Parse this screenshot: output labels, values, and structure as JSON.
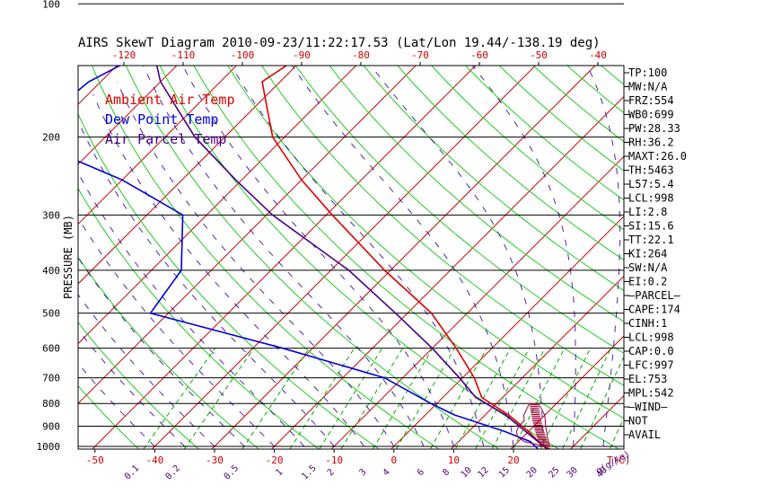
{
  "chart_data": {
    "type": "line",
    "title": "AIRS SkewT Diagram 2010-09-23/11:22:17.53 (Lat/Lon 19.44/-138.19 deg)",
    "ylabel": "PRESSURE (MB)",
    "pressure_ticks": [
      100,
      200,
      300,
      400,
      500,
      600,
      700,
      800,
      900,
      1000
    ],
    "top_temp_ticks": [
      -120,
      -110,
      -100,
      -90,
      -80,
      -70,
      -60,
      -50,
      -40
    ],
    "bottom_temp_ticks": [
      -50,
      -40,
      -30,
      -20,
      -10,
      0,
      10,
      20
    ],
    "bottom_temp_unit": "T(C)",
    "mixing_ratio_labels": [
      "0.1",
      "0.2",
      "0.5",
      "1",
      "1.5",
      "2",
      "3",
      "4",
      "6",
      "8",
      "10",
      "12",
      "15",
      "20",
      "25",
      "30",
      "40"
    ],
    "mixing_ratio_unit": "q(g/kg)",
    "legend": [
      {
        "name": "Ambient Air Temp",
        "color": "#dd0000"
      },
      {
        "name": "Dew Point Temp",
        "color": "#0000dd"
      },
      {
        "name": "Air Parcel Temp",
        "color": "#440088"
      }
    ],
    "series": [
      {
        "name": "Ambient Air Temp",
        "color": "#dd0000",
        "points": [
          [
            100,
            -78.5
          ],
          [
            110,
            -78
          ],
          [
            150,
            -83
          ],
          [
            200,
            -72
          ],
          [
            250,
            -60
          ],
          [
            300,
            -49
          ],
          [
            400,
            -31
          ],
          [
            500,
            -16
          ],
          [
            600,
            -6
          ],
          [
            700,
            2
          ],
          [
            775,
            6.5
          ],
          [
            850,
            14
          ],
          [
            925,
            20
          ],
          [
            1000,
            25
          ],
          [
            1013,
            26.5
          ]
        ]
      },
      {
        "name": "Dew Point Temp",
        "color": "#0000dd",
        "points": [
          [
            100,
            -100
          ],
          [
            150,
            -112
          ],
          [
            200,
            -114
          ],
          [
            250,
            -90
          ],
          [
            300,
            -74
          ],
          [
            400,
            -65
          ],
          [
            500,
            -63
          ],
          [
            600,
            -35
          ],
          [
            700,
            -13
          ],
          [
            800,
            -1
          ],
          [
            850,
            5
          ],
          [
            925,
            16
          ],
          [
            975,
            22
          ],
          [
            1013,
            24.5
          ]
        ]
      },
      {
        "name": "Air Parcel Temp",
        "color": "#440088",
        "points": [
          [
            100,
            -116
          ],
          [
            150,
            -100
          ],
          [
            200,
            -85
          ],
          [
            250,
            -71
          ],
          [
            300,
            -59
          ],
          [
            400,
            -37
          ],
          [
            500,
            -22
          ],
          [
            600,
            -10
          ],
          [
            700,
            -0.5
          ],
          [
            775,
            5.5
          ],
          [
            850,
            13.5
          ],
          [
            925,
            19.5
          ],
          [
            1013,
            26
          ]
        ]
      }
    ],
    "stats": [
      "TP:100",
      "MW:N/A",
      "FRZ:554",
      "WB0:699",
      "PW:28.33",
      "RH:36.2",
      "MAXT:26.0",
      "TH:5463",
      "L57:5.4",
      "LCL:998",
      "LI:2.8",
      "SI:15.6",
      "TT:22.1",
      "KI:264",
      "SW:N/A",
      "EI:0.2",
      "—PARCEL—",
      "CAPE:174",
      "CINH:1",
      "LCL:998",
      "CAP:0.0",
      "LFC:997",
      "EL:753",
      "MPL:542",
      "—WIND—",
      "NOT",
      "AVAIL"
    ],
    "colors": {
      "isotherm": "#cc0000",
      "dry_adiabat": "#22cc22",
      "mixing_ratio": "#00aa00",
      "moist_adiabat": "#330099",
      "axis_text": "#cc0000",
      "mr_text": "#550077",
      "hatch": "#990033"
    }
  }
}
